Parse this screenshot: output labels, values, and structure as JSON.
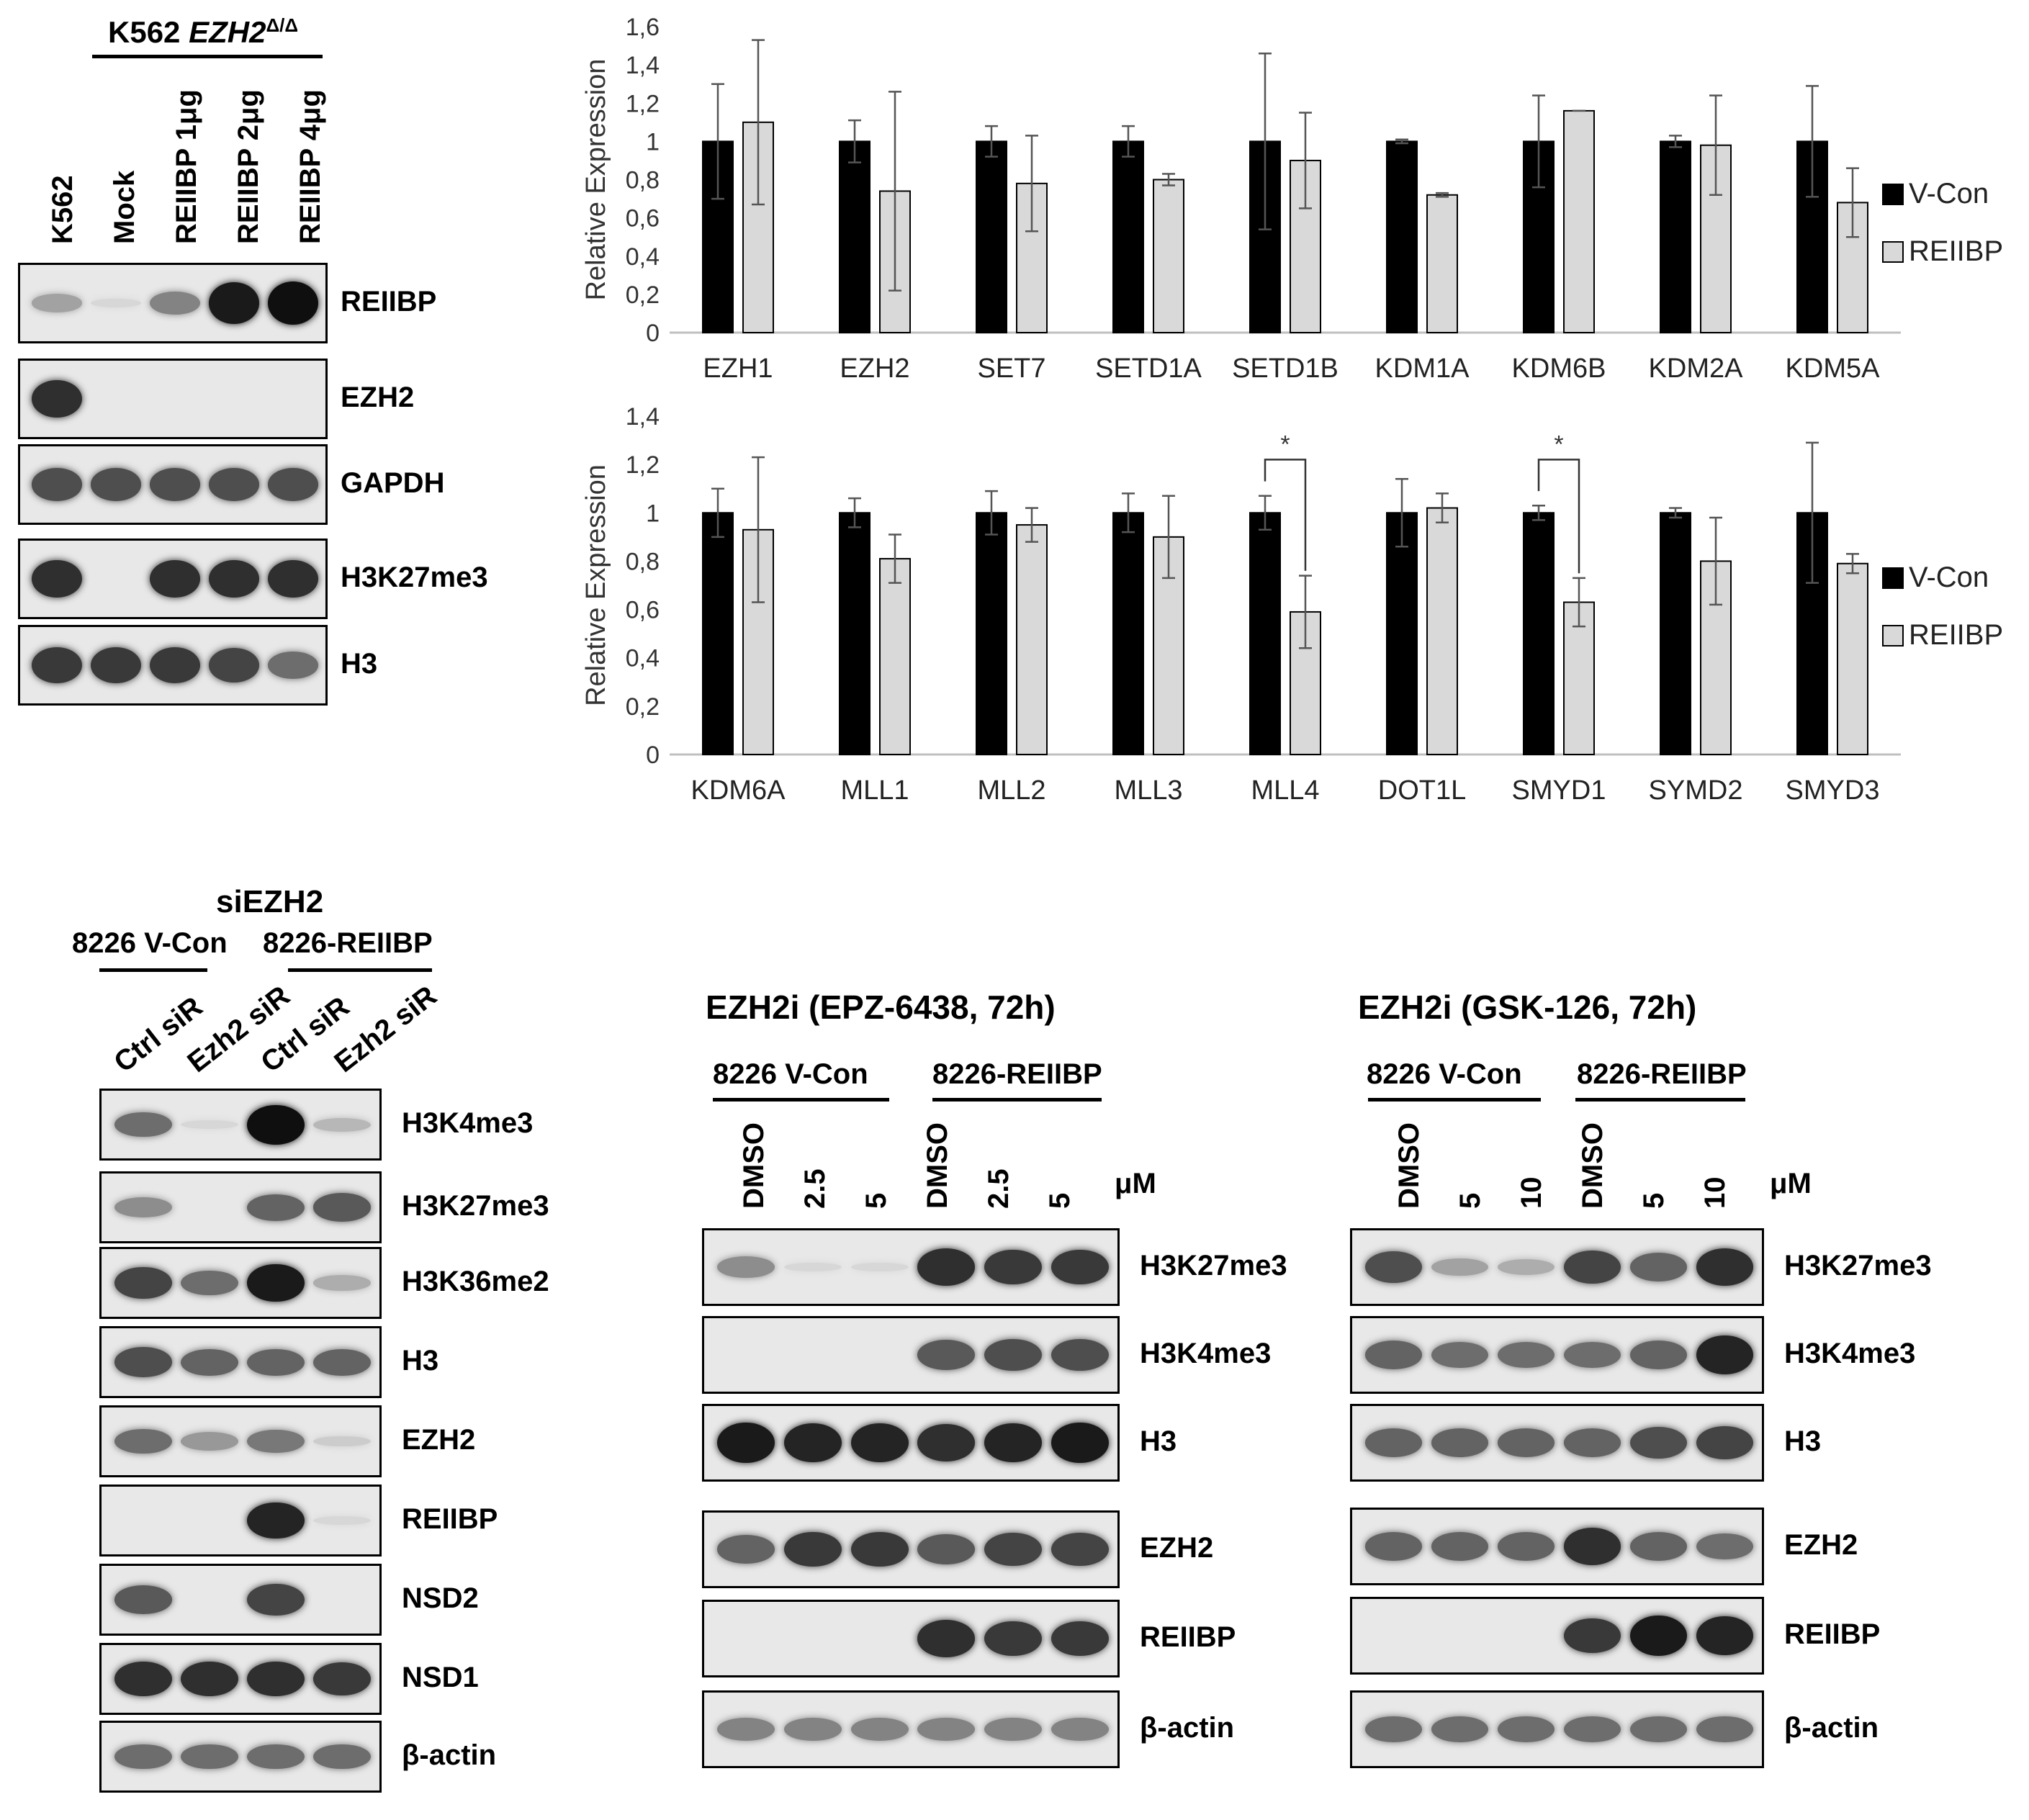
{
  "panelA": {
    "title_main": "K562 ",
    "title_gene": "EZH2",
    "title_sup": "Δ/Δ",
    "lanes": [
      "K562",
      "Mock",
      "REIIBP 1μg",
      "REIIBP 2μg",
      "REIIBP 4μg"
    ],
    "blots": [
      {
        "label": "REIIBP",
        "bands": [
          0.3,
          0.05,
          0.45,
          0.95,
          1.0
        ]
      },
      {
        "label": "EZH2",
        "bands": [
          0.85,
          0,
          0,
          0,
          0
        ]
      },
      {
        "label": "GAPDH",
        "bands": [
          0.7,
          0.7,
          0.7,
          0.7,
          0.7
        ]
      },
      {
        "label": "H3K27me3",
        "bands": [
          0.85,
          0,
          0.85,
          0.85,
          0.85
        ]
      },
      {
        "label": "H3",
        "bands": [
          0.8,
          0.8,
          0.8,
          0.75,
          0.55
        ]
      }
    ]
  },
  "chart_data": [
    {
      "type": "bar",
      "ylabel": "Relative Expression",
      "ylim": [
        0,
        1.6
      ],
      "yticks": [
        "0",
        "0,2",
        "0,4",
        "0,6",
        "0,8",
        "1",
        "1,2",
        "1,4",
        "1,6"
      ],
      "categories": [
        "EZH1",
        "EZH2",
        "SET7",
        "SETD1A",
        "SETD1B",
        "KDM1A",
        "KDM6B",
        "KDM2A",
        "KDM5A"
      ],
      "series": [
        {
          "name": "V-Con",
          "color": "#000000",
          "values": [
            1,
            1,
            1,
            1,
            1,
            1,
            1,
            1,
            1
          ],
          "errors": [
            0.3,
            0.11,
            0.08,
            0.08,
            0.46,
            0.01,
            0.24,
            0.03,
            0.29
          ]
        },
        {
          "name": "REIIBP",
          "color": "#d9d9d9",
          "values": [
            1.1,
            0.74,
            0.78,
            0.8,
            0.9,
            0.72,
            1.16,
            0.98,
            0.68
          ],
          "errors": [
            0.43,
            0.52,
            0.25,
            0.03,
            0.25,
            0.01,
            0.0,
            0.26,
            0.18
          ]
        }
      ],
      "legend": "right",
      "significance": []
    },
    {
      "type": "bar",
      "ylabel": "Relative Expression",
      "ylim": [
        0,
        1.4
      ],
      "yticks": [
        "0",
        "0,2",
        "0,4",
        "0,6",
        "0,8",
        "1",
        "1,2",
        "1,4"
      ],
      "categories": [
        "KDM6A",
        "MLL1",
        "MLL2",
        "MLL3",
        "MLL4",
        "DOT1L",
        "SMYD1",
        "SYMD2",
        "SMYD3"
      ],
      "series": [
        {
          "name": "V-Con",
          "color": "#000000",
          "values": [
            1,
            1,
            1,
            1,
            1,
            1,
            1,
            1,
            1
          ],
          "errors": [
            0.1,
            0.06,
            0.09,
            0.08,
            0.07,
            0.14,
            0.03,
            0.02,
            0.29
          ]
        },
        {
          "name": "REIIBP",
          "color": "#d9d9d9",
          "values": [
            0.93,
            0.81,
            0.95,
            0.9,
            0.59,
            1.02,
            0.63,
            0.8,
            0.79
          ],
          "errors": [
            0.3,
            0.1,
            0.07,
            0.17,
            0.15,
            0.06,
            0.1,
            0.18,
            0.04
          ]
        }
      ],
      "legend": "right",
      "significance": [
        {
          "category": "MLL4",
          "label": "*"
        },
        {
          "category": "SMYD1",
          "label": "*"
        }
      ]
    }
  ],
  "panelC": {
    "title": "siEZH2",
    "group1": "8226 V-Con",
    "group2": "8226-REIIBP",
    "lanes": [
      "Ctrl siR",
      "Ezh2 siR",
      "Ctrl siR",
      "Ezh2 siR"
    ],
    "blots": [
      {
        "label": "H3K4me3",
        "bands": [
          0.55,
          0.05,
          1.0,
          0.2
        ]
      },
      {
        "label": "H3K27me3",
        "bands": [
          0.4,
          0,
          0.6,
          0.65
        ]
      },
      {
        "label": "H3K36me2",
        "bands": [
          0.75,
          0.55,
          0.95,
          0.25
        ]
      },
      {
        "label": "H3",
        "bands": [
          0.7,
          0.6,
          0.6,
          0.6
        ]
      },
      {
        "label": "EZH2",
        "bands": [
          0.55,
          0.35,
          0.5,
          0.1
        ]
      },
      {
        "label": "REIIBP",
        "bands": [
          0,
          0,
          0.9,
          0.05
        ]
      },
      {
        "label": "NSD2",
        "bands": [
          0.65,
          0,
          0.75,
          0
        ]
      },
      {
        "label": "NSD1",
        "bands": [
          0.85,
          0.85,
          0.85,
          0.8
        ]
      },
      {
        "label": "β-actin",
        "bands": [
          0.55,
          0.55,
          0.55,
          0.55
        ]
      }
    ]
  },
  "panelD": {
    "title": "EZH2i (EPZ-6438, 72h)",
    "group1": "8226 V-Con",
    "group2": "8226-REIIBP",
    "lanes": [
      "DMSO",
      "2.5",
      "5",
      "DMSO",
      "2.5",
      "5"
    ],
    "unit": "μM",
    "blots": [
      {
        "label": "H3K27me3",
        "bands": [
          0.4,
          0.05,
          0.05,
          0.85,
          0.8,
          0.8
        ]
      },
      {
        "label": "H3K4me3",
        "bands": [
          0,
          0,
          0,
          0.65,
          0.7,
          0.7
        ]
      },
      {
        "label": "H3",
        "bands": [
          0.95,
          0.9,
          0.9,
          0.85,
          0.9,
          0.95
        ]
      },
      {
        "label": "EZH2",
        "bands": [
          0.6,
          0.8,
          0.8,
          0.65,
          0.75,
          0.75
        ]
      },
      {
        "label": "REIIBP",
        "bands": [
          0,
          0,
          0,
          0.85,
          0.8,
          0.8
        ]
      },
      {
        "label": "β-actin",
        "bands": [
          0.45,
          0.45,
          0.45,
          0.45,
          0.45,
          0.45
        ]
      }
    ]
  },
  "panelE": {
    "title": "EZH2i (GSK-126, 72h)",
    "group1": "8226 V-Con",
    "group2": "8226-REIIBP",
    "lanes": [
      "DMSO",
      "5",
      "10",
      "DMSO",
      "5",
      "10"
    ],
    "unit": "μM",
    "blots": [
      {
        "label": "H3K27me3",
        "bands": [
          0.7,
          0.3,
          0.25,
          0.75,
          0.6,
          0.85
        ]
      },
      {
        "label": "H3K4me3",
        "bands": [
          0.6,
          0.55,
          0.55,
          0.55,
          0.6,
          0.9
        ]
      },
      {
        "label": "H3",
        "bands": [
          0.6,
          0.6,
          0.6,
          0.6,
          0.7,
          0.75
        ]
      },
      {
        "label": "EZH2",
        "bands": [
          0.6,
          0.6,
          0.6,
          0.85,
          0.6,
          0.55
        ]
      },
      {
        "label": "REIIBP",
        "bands": [
          0,
          0,
          0,
          0.8,
          0.95,
          0.9
        ]
      },
      {
        "label": "β-actin",
        "bands": [
          0.55,
          0.55,
          0.55,
          0.55,
          0.55,
          0.55
        ]
      }
    ]
  }
}
